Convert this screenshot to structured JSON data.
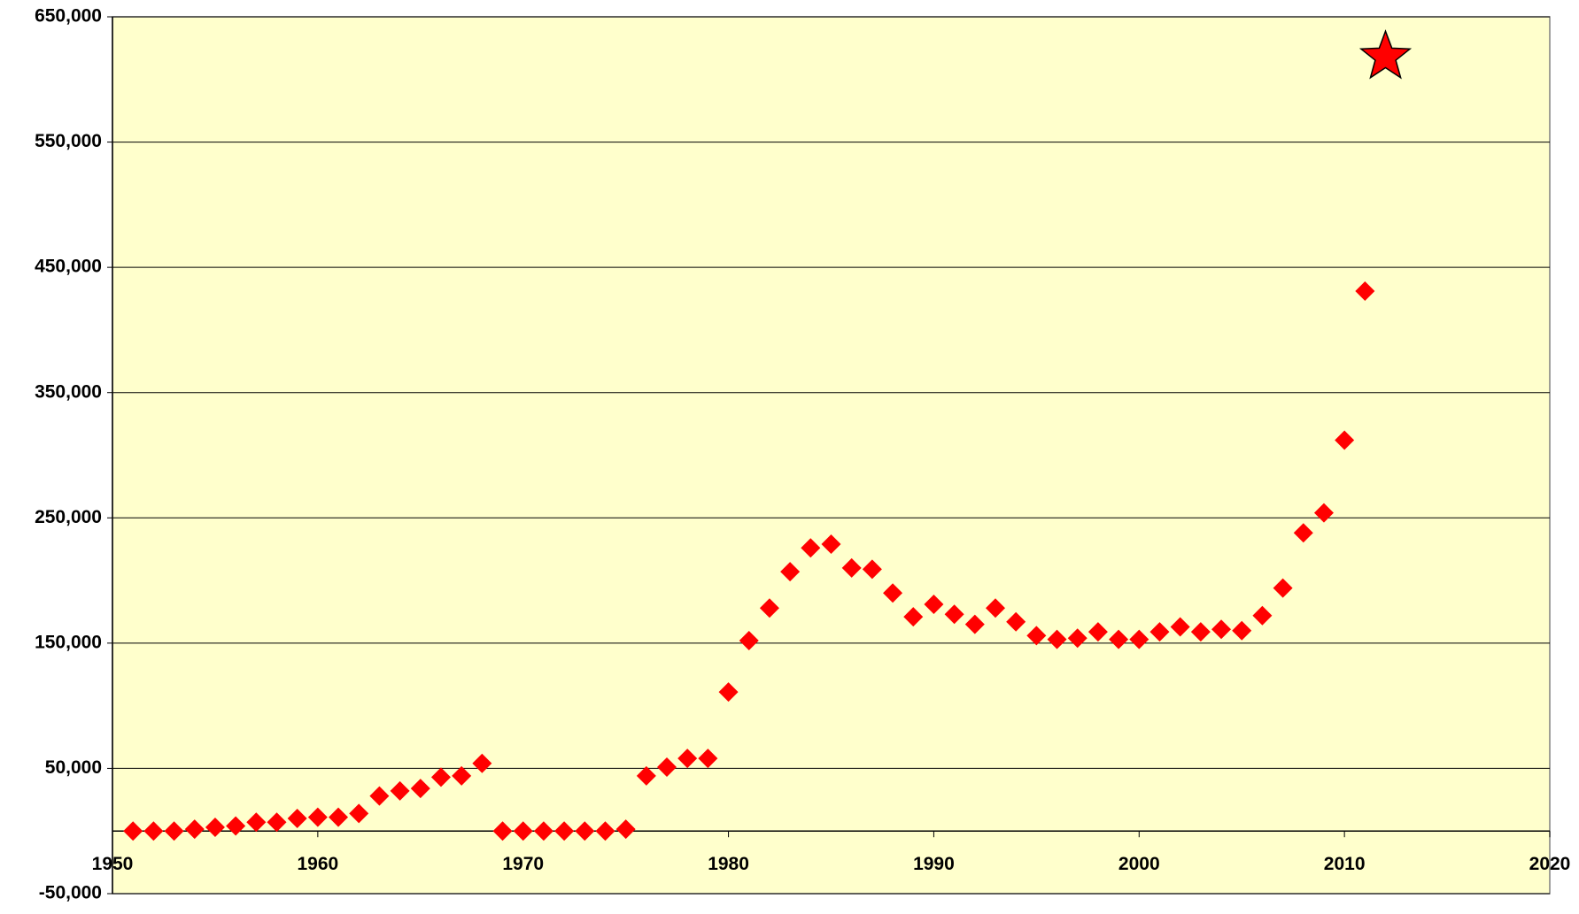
{
  "chart_data": {
    "type": "scatter",
    "series": [
      {
        "name": null,
        "color": "#ff0000",
        "marker": "diamond",
        "x": [
          1951,
          1952,
          1953,
          1954,
          1955,
          1956,
          1957,
          1958,
          1959,
          1960,
          1961,
          1962,
          1963,
          1964,
          1965,
          1966,
          1967,
          1968,
          1969,
          1970,
          1971,
          1972,
          1973,
          1974,
          1975,
          1976,
          1977,
          1978,
          1979,
          1980,
          1981,
          1982,
          1983,
          1984,
          1985,
          1986,
          1987,
          1988,
          1989,
          1990,
          1991,
          1992,
          1993,
          1994,
          1995,
          1996,
          1997,
          1998,
          1999,
          2000,
          2001,
          2002,
          2003,
          2004,
          2005,
          2006,
          2007,
          2008,
          2009,
          2010,
          2011
        ],
        "values": [
          0,
          0,
          0,
          1500,
          3000,
          4000,
          7000,
          7000,
          10000,
          11000,
          11000,
          14000,
          28000,
          32000,
          34000,
          43000,
          44000,
          54000,
          0,
          0,
          0,
          0,
          0,
          0,
          1500,
          44000,
          51000,
          58000,
          58000,
          111000,
          152000,
          178000,
          207000,
          226000,
          229000,
          210000,
          209000,
          190000,
          171000,
          181000,
          173000,
          165000,
          178000,
          167000,
          156000,
          153000,
          154000,
          159000,
          153000,
          153000,
          159000,
          163000,
          159000,
          161000,
          160000,
          172000,
          194000,
          238000,
          254000,
          312000,
          431000
        ]
      },
      {
        "name": null,
        "color": "#ff0000",
        "marker": "star",
        "x": [
          2012
        ],
        "values": [
          618000
        ]
      }
    ],
    "xlim": [
      1950,
      2020
    ],
    "xticks": [
      1950,
      1960,
      1970,
      1980,
      1990,
      2000,
      2010,
      2020
    ],
    "ylim": [
      -50000,
      650000
    ],
    "yticks": [
      {
        "value": -50000,
        "label": "-50,000"
      },
      {
        "value": 50000,
        "label": "50,000"
      },
      {
        "value": 150000,
        "label": "150,000"
      },
      {
        "value": 250000,
        "label": "250,000"
      },
      {
        "value": 350000,
        "label": "350,000"
      },
      {
        "value": 450000,
        "label": "450,000"
      },
      {
        "value": 550000,
        "label": "550,000"
      },
      {
        "value": 650000,
        "label": "650,000"
      }
    ],
    "grid": true,
    "background": "#ffffcc"
  }
}
